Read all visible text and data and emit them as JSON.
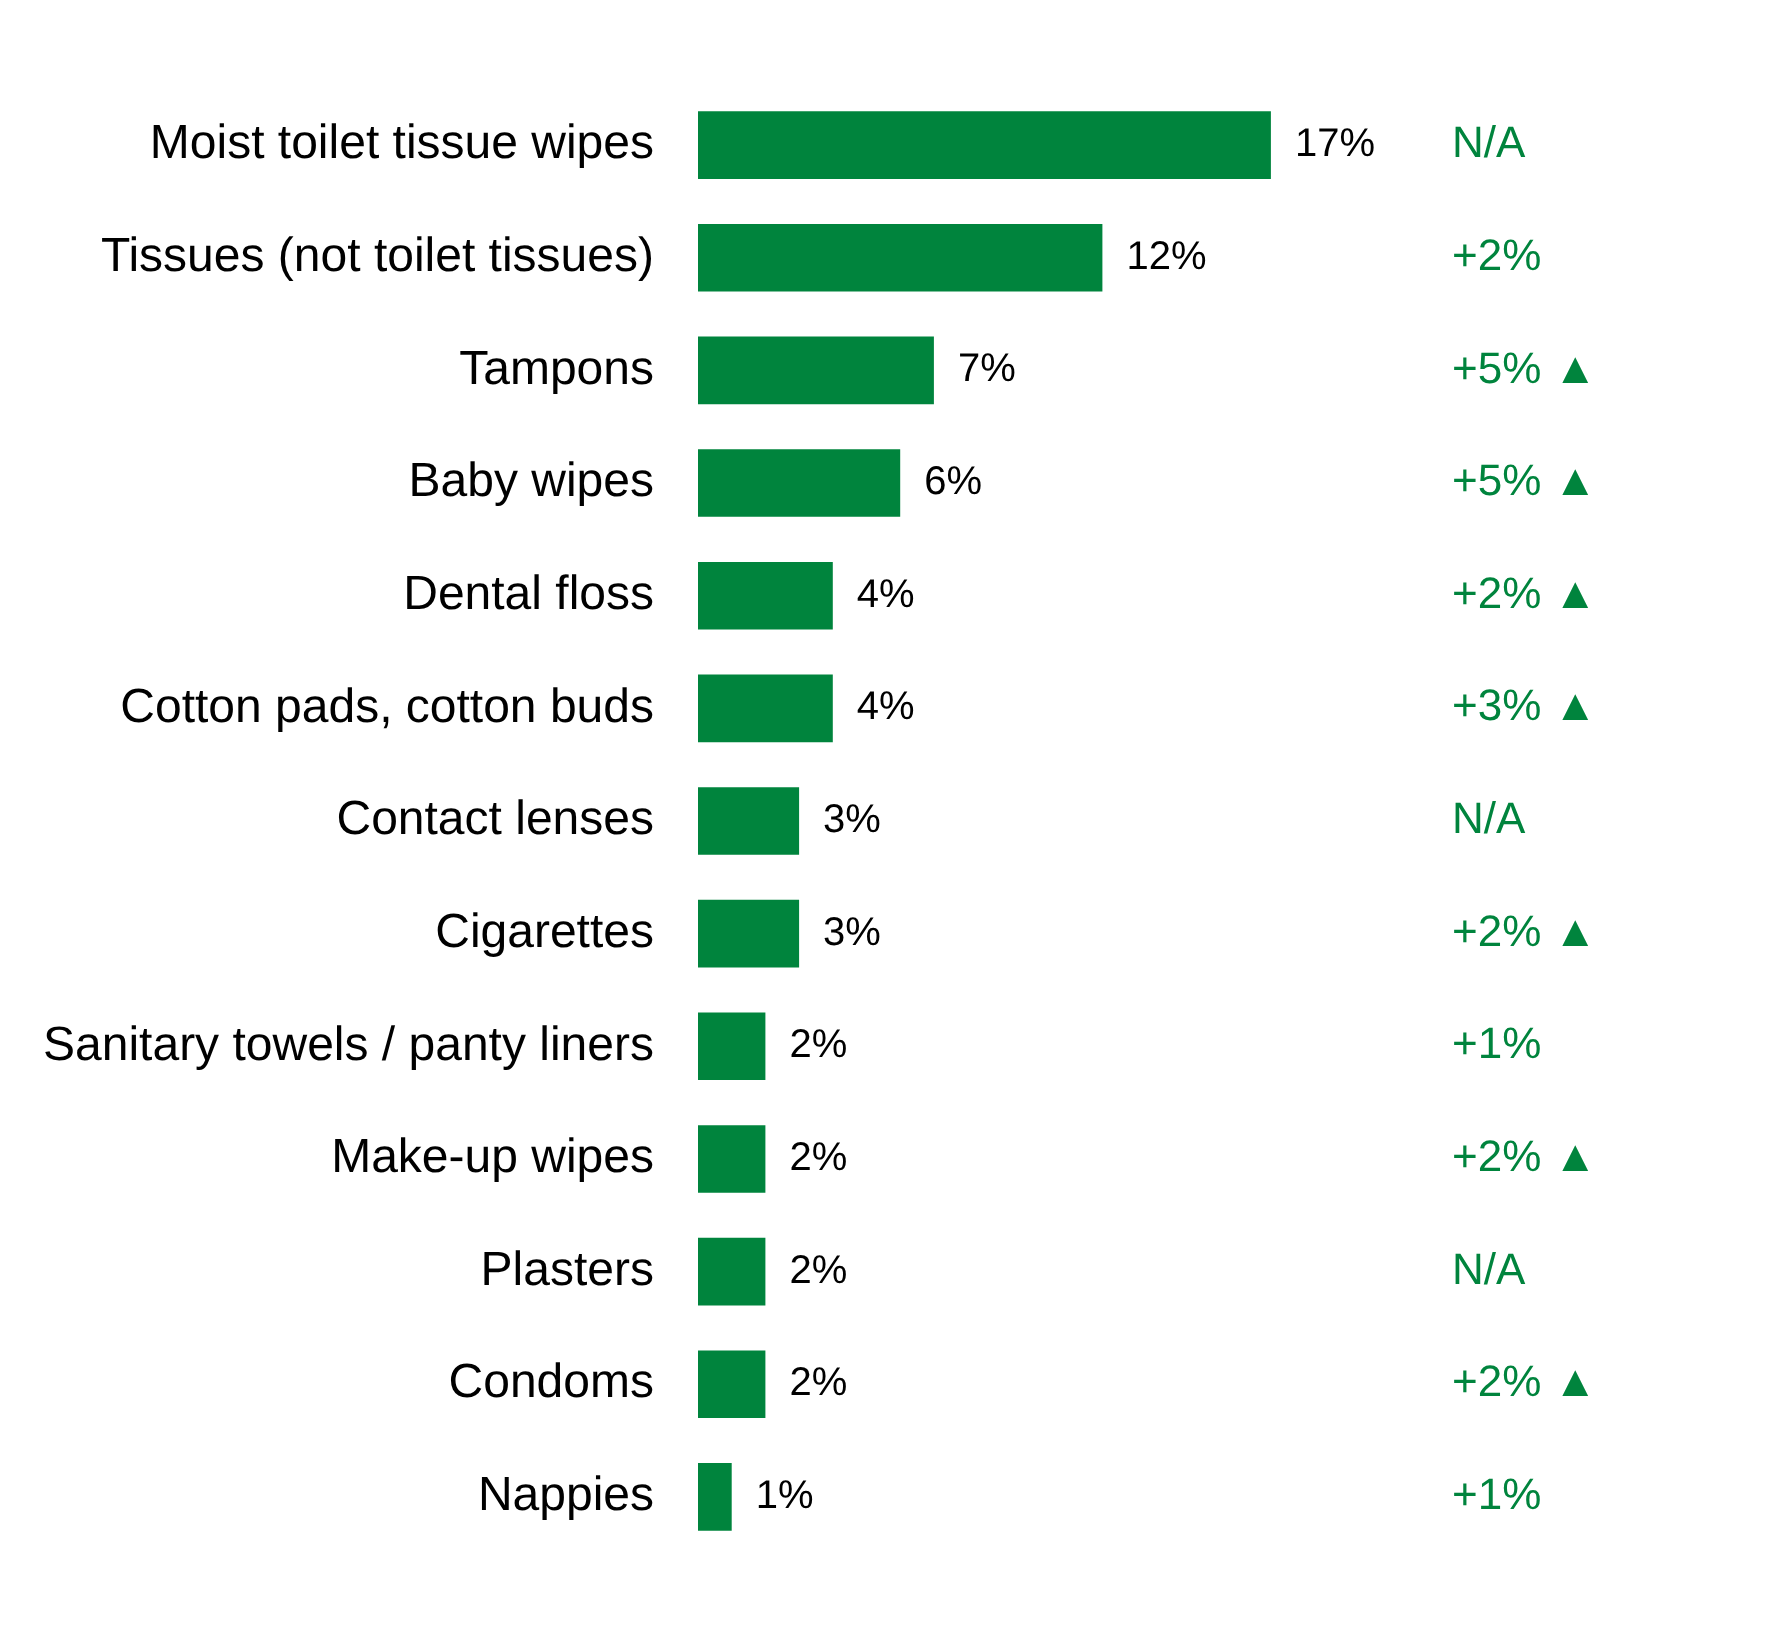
{
  "chart_data": {
    "type": "bar",
    "orientation": "horizontal",
    "categories": [
      "Moist toilet tissue wipes",
      "Tissues (not toilet tissues)",
      "Tampons",
      "Baby wipes",
      "Dental floss",
      "Cotton pads, cotton buds",
      "Contact lenses",
      "Cigarettes",
      "Sanitary towels / panty liners",
      "Make-up wipes",
      "Plasters",
      "Condoms",
      "Nappies"
    ],
    "values": [
      17,
      12,
      7,
      6,
      4,
      4,
      3,
      3,
      2,
      2,
      2,
      2,
      1
    ],
    "value_labels": [
      "17%",
      "12%",
      "7%",
      "6%",
      "4%",
      "4%",
      "3%",
      "3%",
      "2%",
      "2%",
      "2%",
      "2%",
      "1%"
    ],
    "color": "#00843d",
    "grid": false,
    "legend": false,
    "annotations": [
      "N/A",
      "+2%",
      "+5% ▲",
      "+5% ▲",
      "+2% ▲",
      "+3% ▲",
      "N/A",
      "+2% ▲",
      "+1%",
      "+2% ▲",
      "N/A",
      "+2% ▲",
      "+1%"
    ]
  }
}
